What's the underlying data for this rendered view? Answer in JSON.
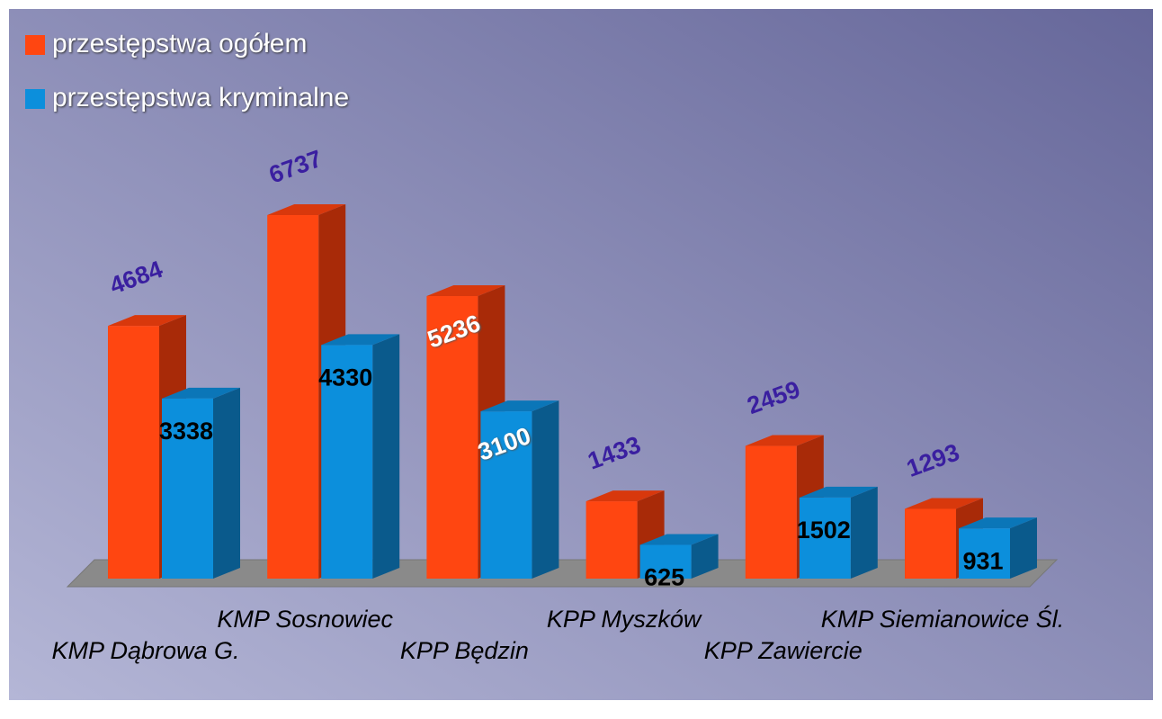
{
  "chart_data": {
    "type": "bar3d",
    "categories": [
      "KMP Dąbrowa G.",
      "KMP Sosnowiec",
      "KPP Będzin",
      "KPP Myszków",
      "KPP Zawiercie",
      "KMP Siemianowice Śl."
    ],
    "series": [
      {
        "name": "przestępstwa ogółem",
        "color": "#ff4611",
        "values": [
          4684,
          6737,
          5236,
          1433,
          2459,
          1293
        ]
      },
      {
        "name": "przestępstwa kryminalne",
        "color": "#0c8fdc",
        "values": [
          3338,
          4330,
          3100,
          625,
          1502,
          931
        ]
      }
    ]
  }
}
